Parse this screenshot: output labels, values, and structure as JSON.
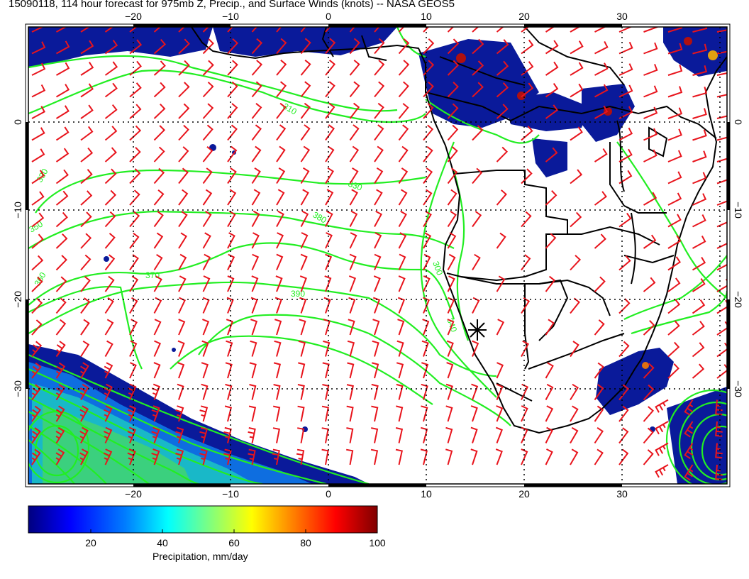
{
  "title": "15090118, 114 hour forecast for 975mb Z, Precip., and Surface Winds (knots) -- NASA GEOS5",
  "map": {
    "lon_ticks": [
      "−20",
      "−10",
      "0",
      "10",
      "20",
      "30"
    ],
    "lat_ticks": [
      "0",
      "−10",
      "−20",
      "−30"
    ],
    "contour_labels": [
      "310",
      "330",
      "350",
      "360",
      "370",
      "390",
      "330",
      "380",
      "300",
      "340"
    ],
    "marker": "station-cross",
    "colors": {
      "wind_barbs": "#e8141c",
      "height_contours": "#22ee22",
      "coastlines": "#000000",
      "grid": "#000000"
    }
  },
  "colorbar": {
    "label": "Precipitation, mm/day",
    "tick_labels": [
      "20",
      "40",
      "60",
      "80",
      "100"
    ],
    "colors": [
      "#00007f",
      "#0000ff",
      "#007fff",
      "#00ffff",
      "#7fff7f",
      "#ffff00",
      "#ff7f00",
      "#ff0000",
      "#7f0000"
    ]
  }
}
